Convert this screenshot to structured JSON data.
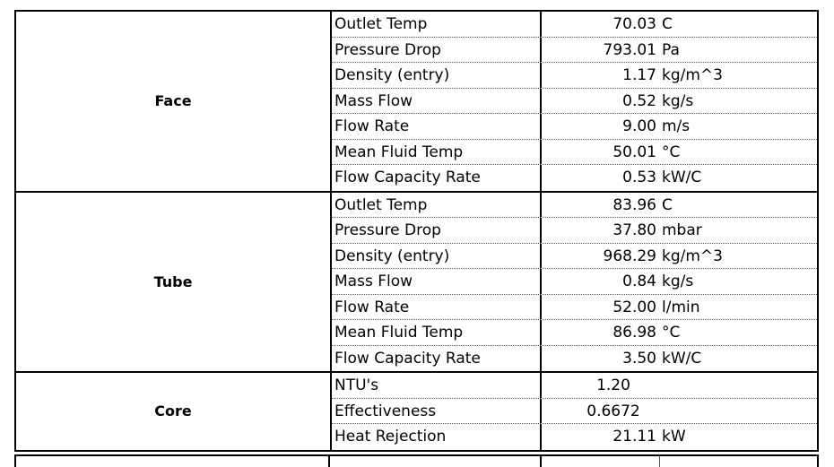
{
  "groups": [
    {
      "label": "Face",
      "rows": [
        {
          "name": "Outlet Temp",
          "value": "70.03",
          "unit": "C"
        },
        {
          "name": "Pressure Drop",
          "value": "793.01",
          "unit": "Pa"
        },
        {
          "name": "Density (entry)",
          "value": "1.17",
          "unit": "kg/m^3"
        },
        {
          "name": "Mass Flow",
          "value": "0.52",
          "unit": "kg/s"
        },
        {
          "name": "Flow Rate",
          "value": "9.00",
          "unit": "m/s"
        },
        {
          "name": "Mean Fluid Temp",
          "value": "50.01",
          "unit": "°C"
        },
        {
          "name": "Flow Capacity Rate",
          "value": "0.53",
          "unit": "kW/C"
        }
      ]
    },
    {
      "label": "Tube",
      "rows": [
        {
          "name": "Outlet Temp",
          "value": "83.96",
          "unit": "C"
        },
        {
          "name": "Pressure Drop",
          "value": "37.80",
          "unit": "mbar"
        },
        {
          "name": "Density (entry)",
          "value": "968.29",
          "unit": "kg/m^3"
        },
        {
          "name": "Mass Flow",
          "value": "0.84",
          "unit": "kg/s"
        },
        {
          "name": "Flow Rate",
          "value": "52.00",
          "unit": "l/min"
        },
        {
          "name": "Mean Fluid Temp",
          "value": "86.98",
          "unit": "°C"
        },
        {
          "name": "Flow Capacity Rate",
          "value": "3.50",
          "unit": "kW/C"
        }
      ]
    },
    {
      "label": "Core",
      "rows": [
        {
          "name": "NTU's",
          "value": "1.20",
          "unit": ""
        },
        {
          "name": "Effectiveness",
          "value": "0.6672",
          "unit": ""
        },
        {
          "name": "Heat Rejection",
          "value": "21.11",
          "unit": "kW"
        }
      ]
    }
  ]
}
